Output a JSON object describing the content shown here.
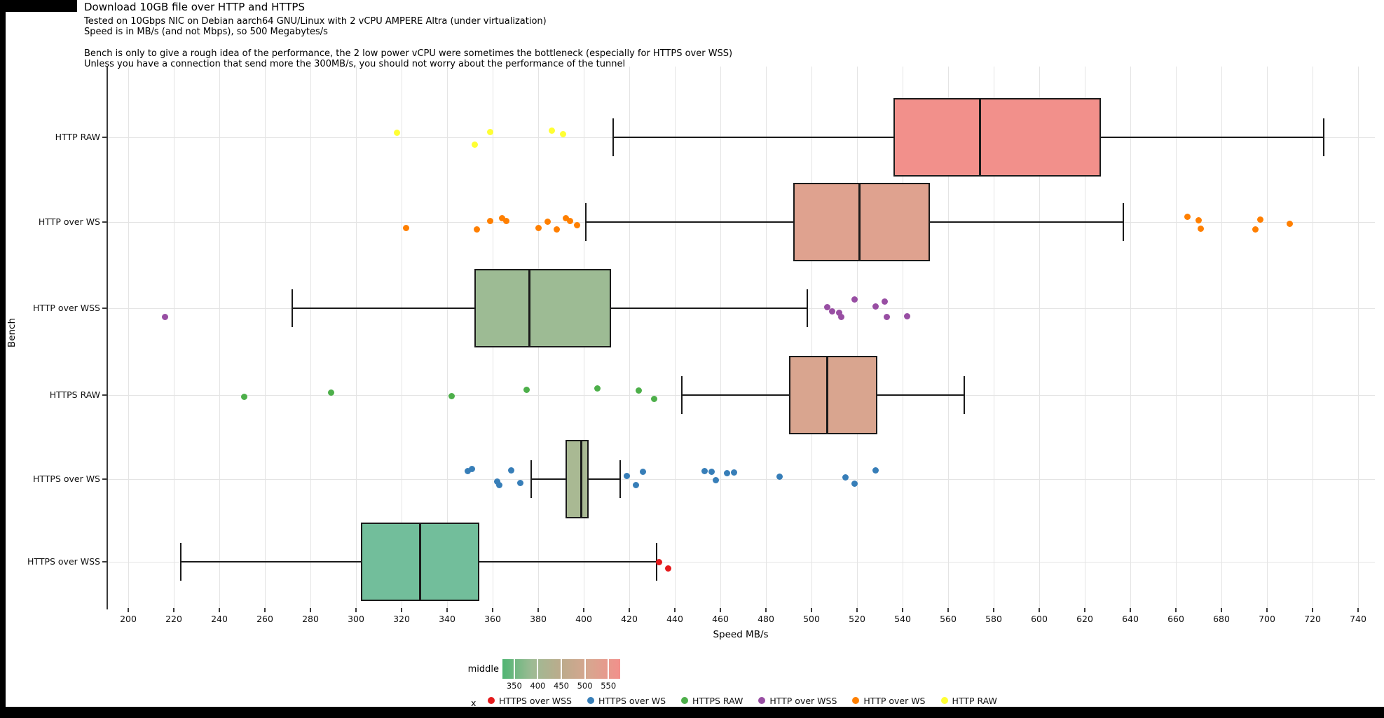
{
  "header": {
    "title": "Download 10GB file over HTTP and HTTPS",
    "subtitle1": "Tested on 10Gbps NIC on Debian aarch64 GNU/Linux with 2 vCPU AMPERE Altra (under virtualization)",
    "subtitle2": "Speed is in MB/s (and not Mbps), so 500 Megabytes/s",
    "note1": "Bench is only to give a rough idea of the performance, the 2 low power vCPU were sometimes the bottleneck (especially for HTTPS over WSS)",
    "note2": "Unless you have a connection that send more the 300MB/s, you should not worry about the performance of the tunnel"
  },
  "chart_data": {
    "type": "boxplot",
    "orientation": "horizontal",
    "title": "Download 10GB file over HTTP and HTTPS",
    "xlabel": "Speed MB/s",
    "ylabel": "Bench",
    "xlim": [
      190,
      748
    ],
    "x_ticks": [
      200,
      220,
      240,
      260,
      280,
      300,
      320,
      340,
      360,
      380,
      400,
      420,
      440,
      460,
      480,
      500,
      520,
      540,
      560,
      580,
      600,
      620,
      640,
      660,
      680,
      700,
      720,
      740
    ],
    "grid": "major-vertical-and-row-lines",
    "categories": [
      "HTTP RAW",
      "HTTP over WS",
      "HTTP over WSS",
      "HTTPS RAW",
      "HTTPS over WS",
      "HTTPS over WSS"
    ],
    "series": [
      {
        "name": "HTTP RAW",
        "box": {
          "whisker_min": 413,
          "q1": 536,
          "median": 574,
          "q3": 627,
          "whisker_max": 725
        },
        "fill": "#F2908B",
        "point_color": "#FFFF33",
        "points": [
          {
            "v": 318,
            "dy": -7
          },
          {
            "v": 352,
            "dy": 10
          },
          {
            "v": 359,
            "dy": -8
          },
          {
            "v": 386,
            "dy": -10
          },
          {
            "v": 391,
            "dy": -5
          }
        ]
      },
      {
        "name": "HTTP over WS",
        "box": {
          "whisker_min": 401,
          "q1": 492,
          "median": 521,
          "q3": 552,
          "whisker_max": 637
        },
        "fill": "#DFA28F",
        "point_color": "#FF7F00",
        "points": [
          {
            "v": 322,
            "dy": 8
          },
          {
            "v": 353,
            "dy": 10
          },
          {
            "v": 359,
            "dy": -2
          },
          {
            "v": 364,
            "dy": -6
          },
          {
            "v": 366,
            "dy": -2
          },
          {
            "v": 380,
            "dy": 8
          },
          {
            "v": 384,
            "dy": -1
          },
          {
            "v": 388,
            "dy": 10
          },
          {
            "v": 392,
            "dy": -6
          },
          {
            "v": 394,
            "dy": -2
          },
          {
            "v": 397,
            "dy": 4
          },
          {
            "v": 665,
            "dy": -8
          },
          {
            "v": 670,
            "dy": -3
          },
          {
            "v": 671,
            "dy": 9
          },
          {
            "v": 695,
            "dy": 10
          },
          {
            "v": 697,
            "dy": -4
          },
          {
            "v": 710,
            "dy": 2
          }
        ]
      },
      {
        "name": "HTTP over WSS",
        "box": {
          "whisker_min": 272,
          "q1": 352,
          "median": 376,
          "q3": 412,
          "whisker_max": 498
        },
        "fill": "#9DBB94",
        "point_color": "#984EA3",
        "points": [
          {
            "v": 216,
            "dy": 12
          },
          {
            "v": 507,
            "dy": -2
          },
          {
            "v": 509,
            "dy": 4
          },
          {
            "v": 512,
            "dy": 6
          },
          {
            "v": 513,
            "dy": 12
          },
          {
            "v": 519,
            "dy": -13
          },
          {
            "v": 528,
            "dy": -3
          },
          {
            "v": 532,
            "dy": -10
          },
          {
            "v": 533,
            "dy": 12
          },
          {
            "v": 542,
            "dy": 11
          }
        ]
      },
      {
        "name": "HTTPS RAW",
        "box": {
          "whisker_min": 443,
          "q1": 490,
          "median": 507,
          "q3": 529,
          "whisker_max": 567
        },
        "fill": "#D9A58F",
        "point_color": "#4DAF4A",
        "points": [
          {
            "v": 251,
            "dy": 2
          },
          {
            "v": 289,
            "dy": -4
          },
          {
            "v": 342,
            "dy": 1
          },
          {
            "v": 375,
            "dy": -8
          },
          {
            "v": 406,
            "dy": -10
          },
          {
            "v": 424,
            "dy": -7
          },
          {
            "v": 431,
            "dy": 5
          }
        ]
      },
      {
        "name": "HTTPS over WS",
        "box": {
          "whisker_min": 377,
          "q1": 392,
          "median": 399,
          "q3": 402,
          "whisker_max": 416
        },
        "fill": "#A9B993",
        "point_color": "#377EB8",
        "points": [
          {
            "v": 349,
            "dy": -12
          },
          {
            "v": 351,
            "dy": -15
          },
          {
            "v": 362,
            "dy": 3
          },
          {
            "v": 363,
            "dy": 8
          },
          {
            "v": 368,
            "dy": -13
          },
          {
            "v": 372,
            "dy": 5
          },
          {
            "v": 419,
            "dy": -5
          },
          {
            "v": 423,
            "dy": 8
          },
          {
            "v": 426,
            "dy": -11
          },
          {
            "v": 453,
            "dy": -12
          },
          {
            "v": 456,
            "dy": -11
          },
          {
            "v": 458,
            "dy": 1
          },
          {
            "v": 463,
            "dy": -9
          },
          {
            "v": 466,
            "dy": -10
          },
          {
            "v": 486,
            "dy": -4
          },
          {
            "v": 515,
            "dy": -3
          },
          {
            "v": 519,
            "dy": 6
          },
          {
            "v": 528,
            "dy": -13
          }
        ]
      },
      {
        "name": "HTTPS over WSS",
        "box": {
          "whisker_min": 223,
          "q1": 302,
          "median": 328,
          "q3": 354,
          "whisker_max": 432
        },
        "fill": "#72BE9B",
        "point_color": "#E41A1C",
        "points": [
          {
            "v": 433,
            "dy": 0
          },
          {
            "v": 437,
            "dy": 9
          }
        ]
      }
    ],
    "gradient_legend": {
      "title": "middle",
      "range": [
        325,
        575
      ],
      "ticks": [
        350,
        400,
        450,
        500,
        550
      ],
      "stops": [
        "#4FB573",
        "#9DBB94",
        "#BCAB8C",
        "#D9A58F",
        "#F2908B"
      ],
      "position": "bottom"
    },
    "point_legend": {
      "title": "x",
      "position": "bottom",
      "entries": [
        {
          "label": "HTTPS over WSS",
          "color": "#E41A1C"
        },
        {
          "label": "HTTPS over WS",
          "color": "#377EB8"
        },
        {
          "label": "HTTPS RAW",
          "color": "#4DAF4A"
        },
        {
          "label": "HTTP over WSS",
          "color": "#984EA3"
        },
        {
          "label": "HTTP over WS",
          "color": "#FF7F00"
        },
        {
          "label": "HTTP RAW",
          "color": "#FFFF33"
        }
      ]
    }
  },
  "window": {
    "border_color": "#000000"
  }
}
